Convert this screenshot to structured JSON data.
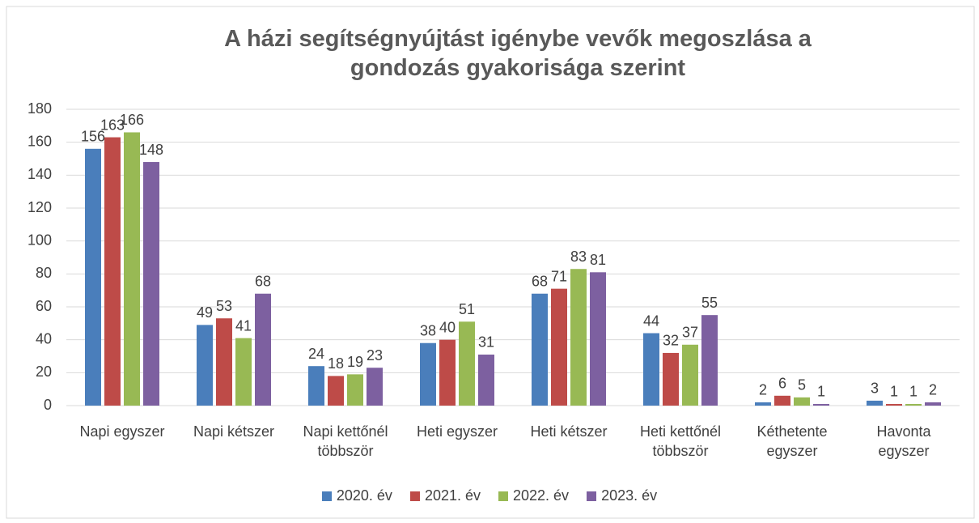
{
  "chart_data": {
    "type": "bar",
    "title": "A házi segítségnyújtást igénybe vevők megoszlása a gondozás gyakorisága szerint",
    "categories": [
      "Napi egyszer",
      "Napi kétszer",
      "Napi kettőnél többször",
      "Heti egyszer",
      "Heti kétszer",
      "Heti kettőnél többször",
      "Kéthetente egyszer",
      "Havonta egyszer"
    ],
    "series": [
      {
        "name": "2020. év",
        "color": "#4a7ebb",
        "values": [
          156,
          49,
          24,
          38,
          68,
          44,
          2,
          3
        ]
      },
      {
        "name": "2021. év",
        "color": "#be4b48",
        "values": [
          163,
          53,
          18,
          40,
          71,
          32,
          6,
          1
        ]
      },
      {
        "name": "2022. év",
        "color": "#98b954",
        "values": [
          166,
          41,
          19,
          51,
          83,
          37,
          5,
          1
        ]
      },
      {
        "name": "2023. év",
        "color": "#7d60a0",
        "values": [
          148,
          68,
          23,
          31,
          81,
          55,
          1,
          2
        ]
      }
    ],
    "ylim": [
      0,
      180
    ],
    "yticks": [
      0,
      20,
      40,
      60,
      80,
      100,
      120,
      140,
      160,
      180
    ],
    "grid": true,
    "legend": "bottom"
  }
}
